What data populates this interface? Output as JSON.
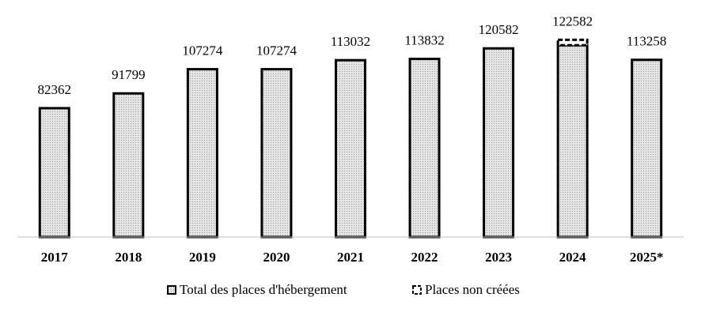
{
  "chart_data": {
    "type": "bar",
    "categories": [
      "2017",
      "2018",
      "2019",
      "2020",
      "2021",
      "2022",
      "2023",
      "2024",
      "2025*"
    ],
    "series": [
      {
        "name": "Total des places d'hébergement",
        "color": "#d9d9d9",
        "values": [
          82362,
          91799,
          107274,
          107274,
          113032,
          113832,
          120582,
          122582,
          113258
        ]
      },
      {
        "name": "Places non créées",
        "color": "#ffffff",
        "values": [
          null,
          null,
          null,
          null,
          null,
          null,
          null,
          3500,
          null
        ]
      }
    ],
    "ylim": [
      0,
      150000
    ]
  }
}
